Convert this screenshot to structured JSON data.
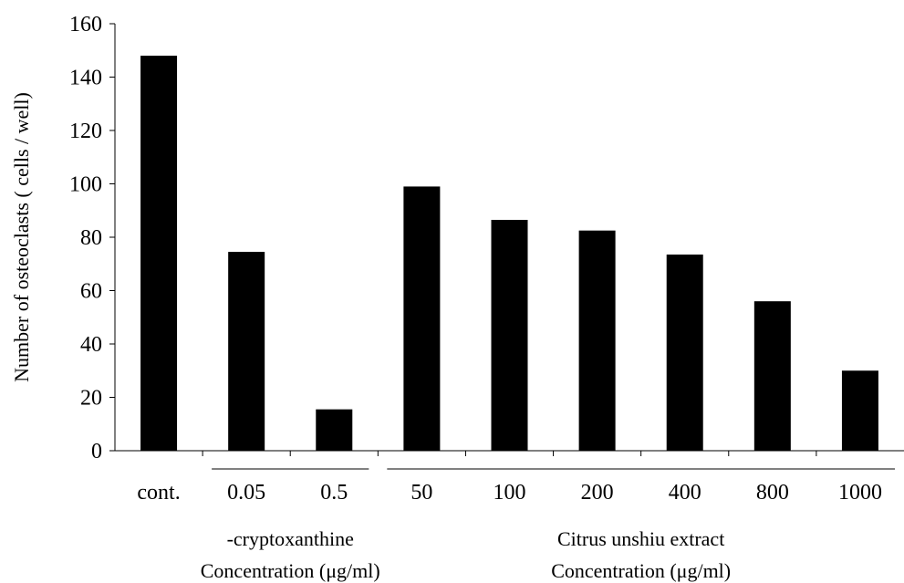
{
  "chart_data": {
    "type": "bar",
    "title": "",
    "ylabel": "Number of osteoclasts ( cells / well)",
    "xlabel": "",
    "ylim": [
      0,
      160
    ],
    "yticks": [
      0,
      20,
      40,
      60,
      80,
      100,
      120,
      140,
      160
    ],
    "grid": false,
    "legend": "none",
    "categories": [
      "cont.",
      "0.05",
      "0.5",
      "50",
      "100",
      "200",
      "400",
      "800",
      "1000"
    ],
    "values": [
      148,
      74.5,
      15.5,
      99,
      86.5,
      82.5,
      73.5,
      56,
      30
    ],
    "bar_color": "#000000",
    "groups": [
      {
        "members": [
          1,
          2
        ],
        "label_line1": "-cryptoxanthine",
        "label_line2": "Concentration (μg/ml)"
      },
      {
        "members": [
          3,
          4,
          5,
          6,
          7,
          8
        ],
        "label_line1": "Citrus unshiu extract",
        "label_line2": "Concentration (μg/ml)"
      }
    ]
  }
}
